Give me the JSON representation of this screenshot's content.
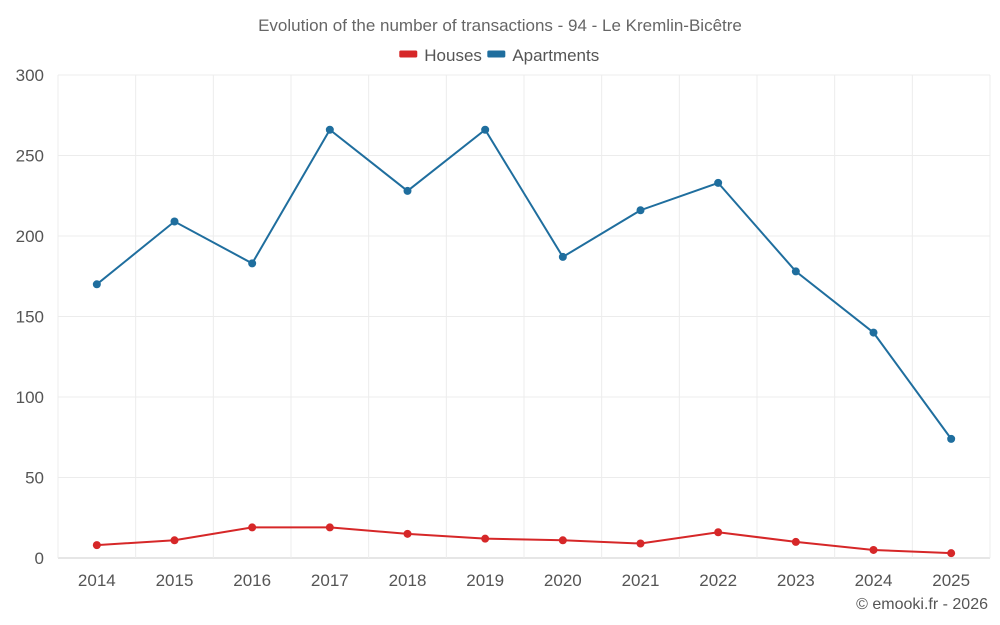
{
  "chart_data": {
    "type": "line",
    "title": "Evolution of the number of transactions - 94 - Le Kremlin-Bicêtre",
    "categories": [
      "2014",
      "2015",
      "2016",
      "2017",
      "2018",
      "2019",
      "2020",
      "2021",
      "2022",
      "2023",
      "2024",
      "2025"
    ],
    "ylim": [
      0,
      300
    ],
    "yticks": [
      0,
      50,
      100,
      150,
      200,
      250,
      300
    ],
    "grid": true,
    "legend_position": "top-center",
    "series": [
      {
        "name": "Houses",
        "color": "#d62728",
        "values": [
          8,
          11,
          19,
          19,
          15,
          12,
          11,
          9,
          16,
          10,
          5,
          3
        ]
      },
      {
        "name": "Apartments",
        "color": "#1f6e9e",
        "values": [
          170,
          209,
          183,
          266,
          228,
          266,
          187,
          216,
          233,
          178,
          140,
          74
        ]
      }
    ],
    "xlabel": "",
    "ylabel": ""
  },
  "credit": "© emooki.fr - 2026"
}
